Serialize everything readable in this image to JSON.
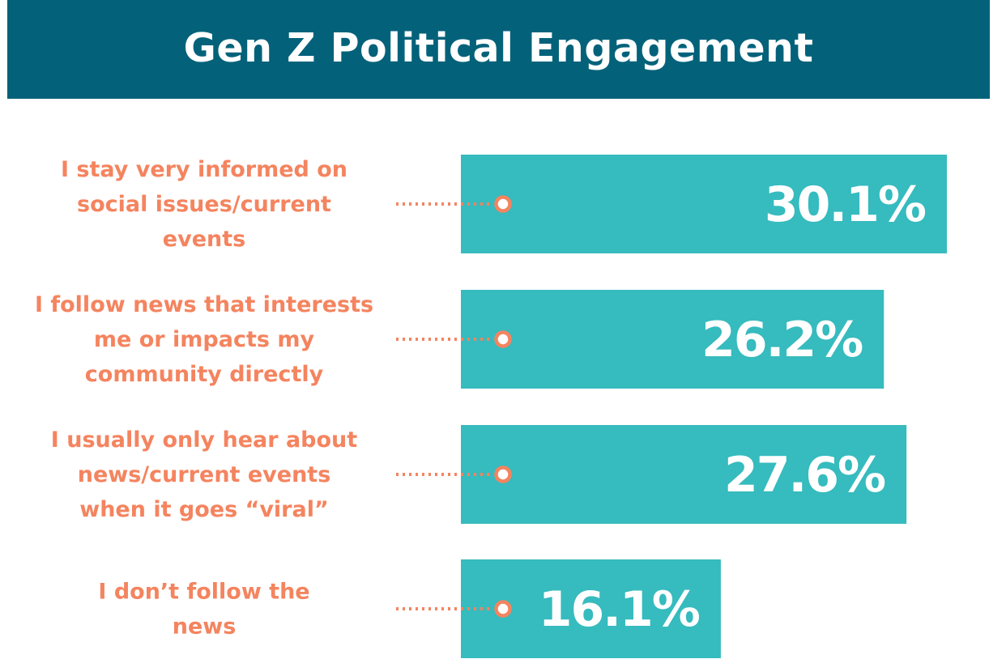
{
  "title": "Gen Z Political Engagement",
  "colors": {
    "header_bg": "#03627a",
    "bar": "#36bbbe",
    "label": "#f4845f",
    "value_text": "#ffffff"
  },
  "chart_data": {
    "type": "bar",
    "orientation": "horizontal",
    "title": "Gen Z Political Engagement",
    "unit": "%",
    "categories": [
      [
        "I stay very informed on",
        "social issues/current",
        "events"
      ],
      [
        "I follow news that interests",
        "me or impacts my",
        "community directly"
      ],
      [
        "I usually only hear about",
        "news/current events",
        "when it goes “viral”"
      ],
      [
        "I don’t follow the",
        "news"
      ]
    ],
    "values": [
      30.1,
      26.2,
      27.6,
      16.1
    ],
    "value_labels": [
      "30.1%",
      "26.2%",
      "27.6%",
      "16.1%"
    ],
    "xlim": [
      0,
      30.1
    ],
    "xlabel": "",
    "ylabel": "",
    "grid": false,
    "legend": "none"
  }
}
